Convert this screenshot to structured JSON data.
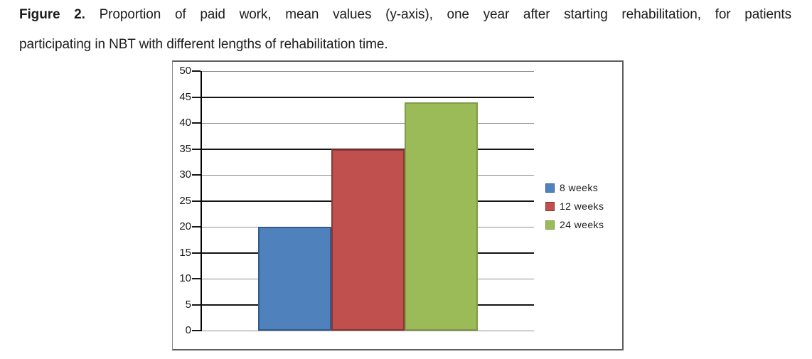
{
  "caption": {
    "figure_label": "Figure 2.",
    "line1_rest": "Proportion of paid work, mean values (y-axis), one year after starting rehabilitation, for patients",
    "line2": "participating in NBT with different lengths of rehabilitation time."
  },
  "chart_data": {
    "type": "bar",
    "title": "",
    "xlabel": "",
    "ylabel": "",
    "ylim": [
      0,
      50
    ],
    "ytick_step": 5,
    "yticks": [
      50,
      45,
      40,
      35,
      30,
      25,
      20,
      15,
      10,
      5,
      0
    ],
    "grid": true,
    "legend_position": "right",
    "categories": [
      "8 weeks",
      "12 weeks",
      "24 weeks"
    ],
    "series": [
      {
        "name": "8 weeks",
        "value": 20,
        "fill": "#4F81BD",
        "border": "#2F5C8F"
      },
      {
        "name": "12 weeks",
        "value": 35,
        "fill": "#C0504D",
        "border": "#8E3432"
      },
      {
        "name": "24 weeks",
        "value": 44,
        "fill": "#9BBB59",
        "border": "#7E9B47"
      }
    ]
  }
}
